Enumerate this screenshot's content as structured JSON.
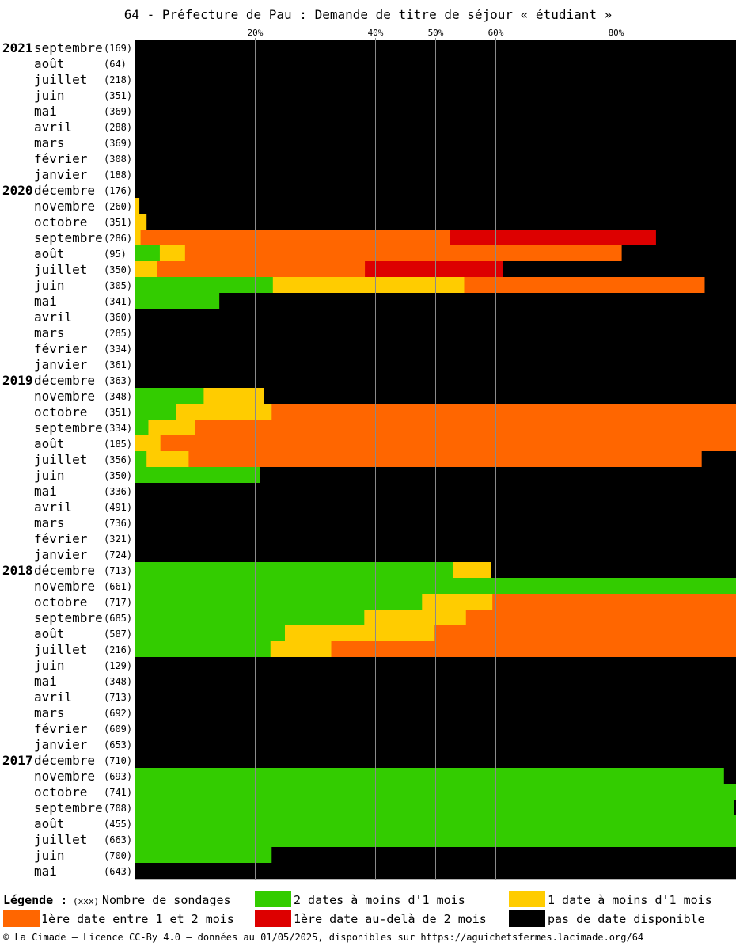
{
  "chart_data": {
    "type": "bar",
    "orientation": "horizontal-stacked",
    "title": "64 - Préfecture de Pau : Demande de titre de séjour « étudiant »",
    "x_ticks": [
      "20%",
      "40%",
      "50%",
      "60%",
      "80%"
    ],
    "x_tick_values": [
      20,
      40,
      50,
      60,
      80
    ],
    "xlim": [
      0,
      100
    ],
    "colors": {
      "green": "#33cc00",
      "yellow": "#ffcc00",
      "orange": "#ff6600",
      "red": "#dd0000",
      "black": "#000000"
    },
    "series_order": [
      "green",
      "yellow",
      "orange",
      "red",
      "black"
    ],
    "years": [
      {
        "label": "2021",
        "row": 0
      },
      {
        "label": "2020",
        "row": 9
      },
      {
        "label": "2019",
        "row": 21
      },
      {
        "label": "2018",
        "row": 33
      },
      {
        "label": "2017",
        "row": 45
      }
    ],
    "rows": [
      {
        "month": "septembre",
        "count": "(169)",
        "values": [
          0,
          0,
          0,
          0,
          100
        ]
      },
      {
        "month": "août",
        "count": "(64)",
        "values": [
          0,
          0,
          0,
          0,
          100
        ]
      },
      {
        "month": "juillet",
        "count": "(218)",
        "values": [
          0,
          0,
          0,
          0,
          100
        ]
      },
      {
        "month": "juin",
        "count": "(351)",
        "values": [
          0,
          0,
          0,
          0,
          100
        ]
      },
      {
        "month": "mai",
        "count": "(369)",
        "values": [
          0,
          0,
          0,
          0,
          100
        ]
      },
      {
        "month": "avril",
        "count": "(288)",
        "values": [
          0,
          0,
          0,
          0,
          100
        ]
      },
      {
        "month": "mars",
        "count": "(369)",
        "values": [
          0,
          0,
          0,
          0,
          100
        ]
      },
      {
        "month": "février",
        "count": "(308)",
        "values": [
          0,
          0,
          0,
          0,
          100
        ]
      },
      {
        "month": "janvier",
        "count": "(188)",
        "values": [
          0,
          0,
          0,
          0,
          100
        ]
      },
      {
        "month": "décembre",
        "count": "(176)",
        "values": [
          0,
          0,
          0,
          0,
          100
        ]
      },
      {
        "month": "novembre",
        "count": "(260)",
        "values": [
          0,
          0.8,
          0,
          0,
          99.2
        ]
      },
      {
        "month": "octobre",
        "count": "(351)",
        "values": [
          0,
          2,
          0,
          0,
          98
        ]
      },
      {
        "month": "septembre",
        "count": "(286)",
        "values": [
          0,
          1,
          51.5,
          34.2,
          13.3
        ]
      },
      {
        "month": "août",
        "count": "(95)",
        "values": [
          4.2,
          4.2,
          72.6,
          0,
          19
        ]
      },
      {
        "month": "juillet",
        "count": "(350)",
        "values": [
          0,
          3.7,
          34.6,
          22.9,
          38.8
        ]
      },
      {
        "month": "juin",
        "count": "(305)",
        "values": [
          23,
          31.8,
          40,
          0,
          5.2
        ]
      },
      {
        "month": "mai",
        "count": "(341)",
        "values": [
          14.1,
          0,
          0,
          0,
          85.9
        ]
      },
      {
        "month": "avril",
        "count": "(360)",
        "values": [
          0,
          0,
          0,
          0,
          100
        ]
      },
      {
        "month": "mars",
        "count": "(285)",
        "values": [
          0,
          0,
          0,
          0,
          100
        ]
      },
      {
        "month": "février",
        "count": "(334)",
        "values": [
          0,
          0,
          0,
          0,
          100
        ]
      },
      {
        "month": "janvier",
        "count": "(361)",
        "values": [
          0,
          0,
          0,
          0,
          100
        ]
      },
      {
        "month": "décembre",
        "count": "(363)",
        "values": [
          0,
          0,
          0,
          0,
          100
        ]
      },
      {
        "month": "novembre",
        "count": "(348)",
        "values": [
          11.5,
          10,
          0,
          0,
          78.5
        ]
      },
      {
        "month": "octobre",
        "count": "(351)",
        "values": [
          6.9,
          15.9,
          77.2,
          0,
          0
        ]
      },
      {
        "month": "septembre",
        "count": "(334)",
        "values": [
          2.3,
          7.7,
          90,
          0,
          0
        ]
      },
      {
        "month": "août",
        "count": "(185)",
        "values": [
          0,
          4.3,
          95.7,
          0,
          0
        ]
      },
      {
        "month": "juillet",
        "count": "(356)",
        "values": [
          2,
          7,
          85.3,
          0,
          5.7
        ]
      },
      {
        "month": "juin",
        "count": "(350)",
        "values": [
          20.9,
          0,
          0,
          0,
          79.1
        ]
      },
      {
        "month": "mai",
        "count": "(336)",
        "values": [
          0,
          0,
          0,
          0,
          100
        ]
      },
      {
        "month": "avril",
        "count": "(491)",
        "values": [
          0,
          0,
          0,
          0,
          100
        ]
      },
      {
        "month": "mars",
        "count": "(736)",
        "values": [
          0,
          0,
          0,
          0,
          100
        ]
      },
      {
        "month": "février",
        "count": "(321)",
        "values": [
          0,
          0,
          0,
          0,
          100
        ]
      },
      {
        "month": "janvier",
        "count": "(724)",
        "values": [
          0,
          0,
          0,
          0,
          100
        ]
      },
      {
        "month": "décembre",
        "count": "(713)",
        "values": [
          52.9,
          6.4,
          0,
          0,
          40.7
        ]
      },
      {
        "month": "novembre",
        "count": "(661)",
        "values": [
          100,
          0,
          0,
          0,
          0
        ]
      },
      {
        "month": "octobre",
        "count": "(717)",
        "values": [
          47.8,
          11.7,
          40.5,
          0,
          0
        ]
      },
      {
        "month": "septembre",
        "count": "(685)",
        "values": [
          38.2,
          16.9,
          44.9,
          0,
          0
        ]
      },
      {
        "month": "août",
        "count": "(587)",
        "values": [
          25,
          24.9,
          50.1,
          0,
          0
        ]
      },
      {
        "month": "juillet",
        "count": "(216)",
        "values": [
          22.6,
          10.1,
          67.3,
          0,
          0
        ]
      },
      {
        "month": "juin",
        "count": "(129)",
        "values": [
          0,
          0,
          0,
          0,
          100
        ]
      },
      {
        "month": "mai",
        "count": "(348)",
        "values": [
          0,
          0,
          0,
          0,
          100
        ]
      },
      {
        "month": "avril",
        "count": "(713)",
        "values": [
          0,
          0,
          0,
          0,
          100
        ]
      },
      {
        "month": "mars",
        "count": "(692)",
        "values": [
          0,
          0,
          0,
          0,
          100
        ]
      },
      {
        "month": "février",
        "count": "(609)",
        "values": [
          0,
          0,
          0,
          0,
          100
        ]
      },
      {
        "month": "janvier",
        "count": "(653)",
        "values": [
          0,
          0,
          0,
          0,
          100
        ]
      },
      {
        "month": "décembre",
        "count": "(710)",
        "values": [
          0,
          0,
          0,
          0,
          100
        ]
      },
      {
        "month": "novembre",
        "count": "(693)",
        "values": [
          98,
          0,
          0,
          0,
          2
        ]
      },
      {
        "month": "octobre",
        "count": "(741)",
        "values": [
          100,
          0,
          0,
          0,
          0
        ]
      },
      {
        "month": "septembre",
        "count": "(708)",
        "values": [
          99.7,
          0,
          0,
          0,
          0.3
        ]
      },
      {
        "month": "août",
        "count": "(455)",
        "values": [
          100,
          0,
          0,
          0,
          0
        ]
      },
      {
        "month": "juillet",
        "count": "(663)",
        "values": [
          100,
          0,
          0,
          0,
          0
        ]
      },
      {
        "month": "juin",
        "count": "(700)",
        "values": [
          22.8,
          0,
          0,
          0,
          77.2
        ]
      },
      {
        "month": "mai",
        "count": "(643)",
        "values": [
          0,
          0,
          0,
          0,
          100
        ]
      }
    ]
  },
  "legend": {
    "title": "Légende :",
    "count_hint": "(xxx)",
    "count_label": "Nombre de sondages",
    "items": [
      {
        "key": "green",
        "label": "2 dates à moins d'1 mois"
      },
      {
        "key": "yellow",
        "label": "1 date à moins d'1 mois"
      },
      {
        "key": "orange",
        "label": "1ère date entre 1 et 2 mois"
      },
      {
        "key": "red",
        "label": "1ère date au-delà de 2 mois"
      },
      {
        "key": "black",
        "label": "pas de date disponible"
      }
    ]
  },
  "footer": "© La Cimade — Licence CC-By 4.0 — données au 01/05/2025, disponibles sur https://aguichetsfermes.lacimade.org/64"
}
